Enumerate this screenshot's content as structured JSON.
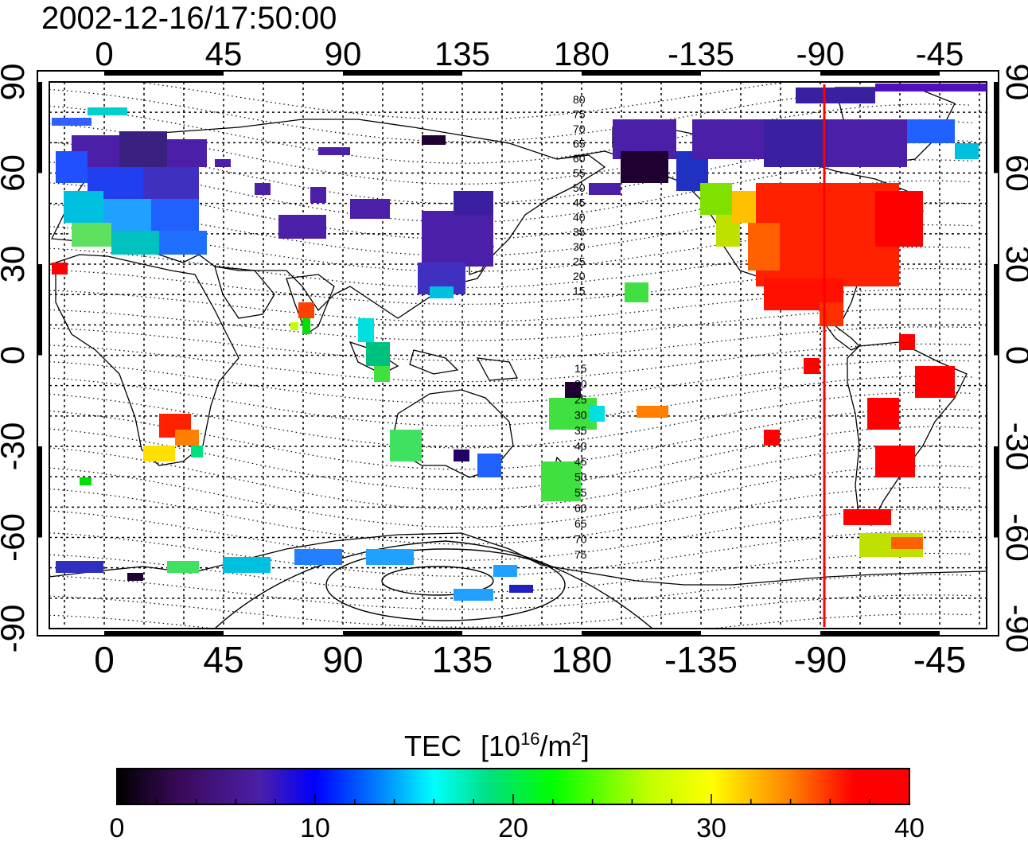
{
  "title": "2002-12-16/17:50:00",
  "top_lon_labels": [
    "0",
    "45",
    "90",
    "135",
    "180",
    "-135",
    "-90",
    "-45"
  ],
  "bottom_lon_labels": [
    "0",
    "45",
    "90",
    "135",
    "180",
    "-135",
    "-90",
    "-45"
  ],
  "left_lat_labels": [
    "90",
    "60",
    "30",
    "0",
    "-30",
    "-60",
    "-90"
  ],
  "right_lat_labels": [
    "90",
    "60",
    "30",
    "0",
    "-30",
    "-60",
    "-90"
  ],
  "contour_labels_north": [
    "80",
    "75",
    "70",
    "65",
    "60",
    "55",
    "50",
    "45",
    "40",
    "35",
    "30",
    "25",
    "20",
    "15"
  ],
  "contour_labels_south": [
    "15",
    "20",
    "25",
    "30",
    "35",
    "40",
    "45",
    "50",
    "55",
    "60",
    "65",
    "70",
    "75"
  ],
  "colorbar": {
    "label": "TEC",
    "unit": "[10",
    "unit_exp": "16",
    "unit_tail": "/m",
    "unit_exp2": "2",
    "unit_close": "]",
    "tick_labels": [
      "0",
      "10",
      "20",
      "30",
      "40"
    ],
    "min": 0,
    "max": 40,
    "colors": [
      "#000000",
      "#3a0a5a",
      "#4b1fa8",
      "#0000ff",
      "#0080ff",
      "#00ffff",
      "#00e080",
      "#00ff00",
      "#c0ff00",
      "#ffff00",
      "#ff8000",
      "#ff0000"
    ]
  },
  "marker": {
    "longitude": -88,
    "color": "#ff0000"
  }
}
